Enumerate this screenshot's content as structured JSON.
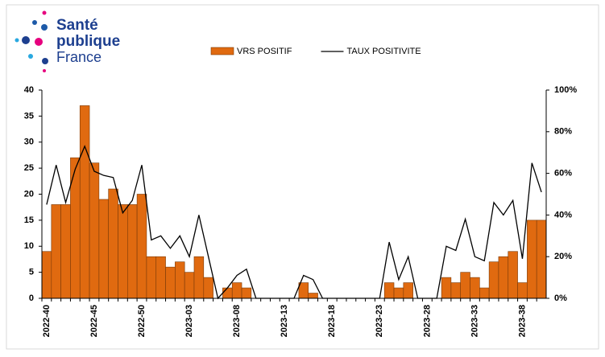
{
  "logo": {
    "lines": [
      "Santé",
      "publique",
      "France"
    ]
  },
  "chart_data": {
    "type": "bar-line",
    "categories": [
      "2022-40",
      null,
      null,
      null,
      null,
      "2022-45",
      null,
      null,
      null,
      null,
      "2022-50",
      null,
      null,
      null,
      null,
      "2023-03",
      null,
      null,
      null,
      null,
      "2023-08",
      null,
      null,
      null,
      null,
      "2023-13",
      null,
      null,
      null,
      null,
      "2023-18",
      null,
      null,
      null,
      null,
      "2023-23",
      null,
      null,
      null,
      null,
      "2023-28",
      null,
      null,
      null,
      null,
      "2023-33",
      null,
      null,
      null,
      null,
      "2023-38",
      null,
      null
    ],
    "series": [
      {
        "name": "VRS POSITIF",
        "kind": "bar",
        "color": "#e06a10",
        "values": [
          9,
          18,
          18,
          27,
          37,
          26,
          19,
          21,
          18,
          18,
          20,
          8,
          8,
          6,
          7,
          5,
          8,
          4,
          0,
          2,
          3,
          2,
          0,
          0,
          0,
          0,
          0,
          3,
          1,
          0,
          0,
          0,
          0,
          0,
          0,
          0,
          3,
          2,
          3,
          0,
          0,
          0,
          4,
          3,
          5,
          4,
          2,
          7,
          8,
          9,
          3,
          15,
          15
        ]
      },
      {
        "name": "TAUX POSITIVITE",
        "kind": "line",
        "axis": "y2",
        "color": "#000000",
        "values": [
          45,
          64,
          46,
          62,
          73,
          61,
          59,
          58,
          41,
          47,
          64,
          28,
          30,
          24,
          30,
          20,
          40,
          20,
          0,
          5,
          11,
          14,
          0,
          0,
          0,
          0,
          0,
          11,
          9,
          0,
          0,
          0,
          0,
          0,
          0,
          0,
          27,
          9,
          20,
          0,
          0,
          0,
          25,
          23,
          38,
          20,
          18,
          46,
          40,
          47,
          19,
          65,
          51
        ]
      }
    ],
    "ylim": [
      0,
      40
    ],
    "yticks": [
      0,
      5,
      10,
      15,
      20,
      25,
      30,
      35,
      40
    ],
    "y2lim": [
      0,
      100
    ],
    "y2ticks": [
      {
        "value": 0,
        "label": "0%"
      },
      {
        "value": 20,
        "label": "20%"
      },
      {
        "value": 40,
        "label": "40%"
      },
      {
        "value": 60,
        "label": "60%"
      },
      {
        "value": 80,
        "label": "80%"
      },
      {
        "value": 100,
        "label": "100%"
      }
    ]
  }
}
